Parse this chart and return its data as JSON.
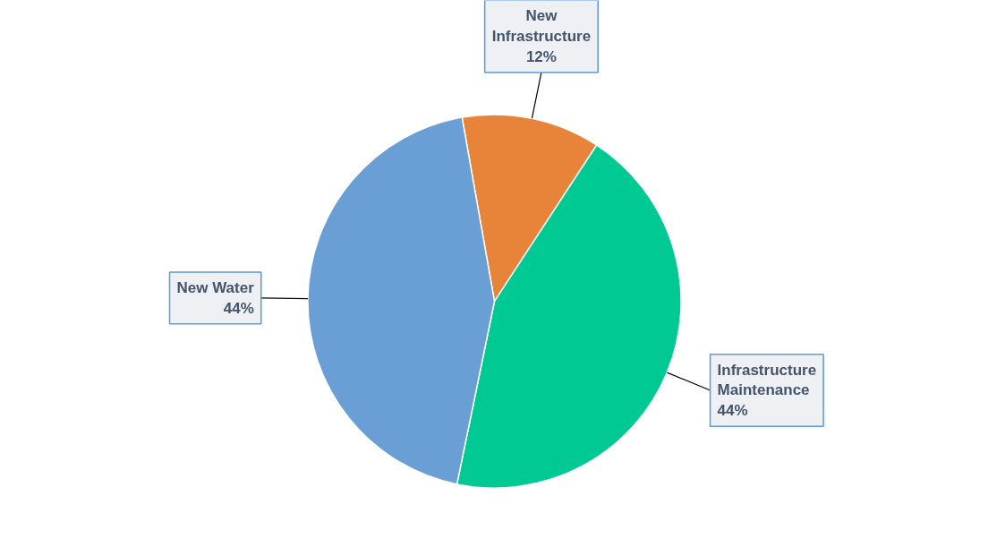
{
  "chart_data": {
    "type": "pie",
    "categories": [
      "New Infrastructure",
      "Infrastructure Maintenance",
      "New Water"
    ],
    "values": [
      12,
      44,
      44
    ],
    "value_labels": [
      "12%",
      "44%",
      "44%"
    ],
    "colors": [
      "#e8833a",
      "#00c994",
      "#6a9fd6"
    ]
  }
}
